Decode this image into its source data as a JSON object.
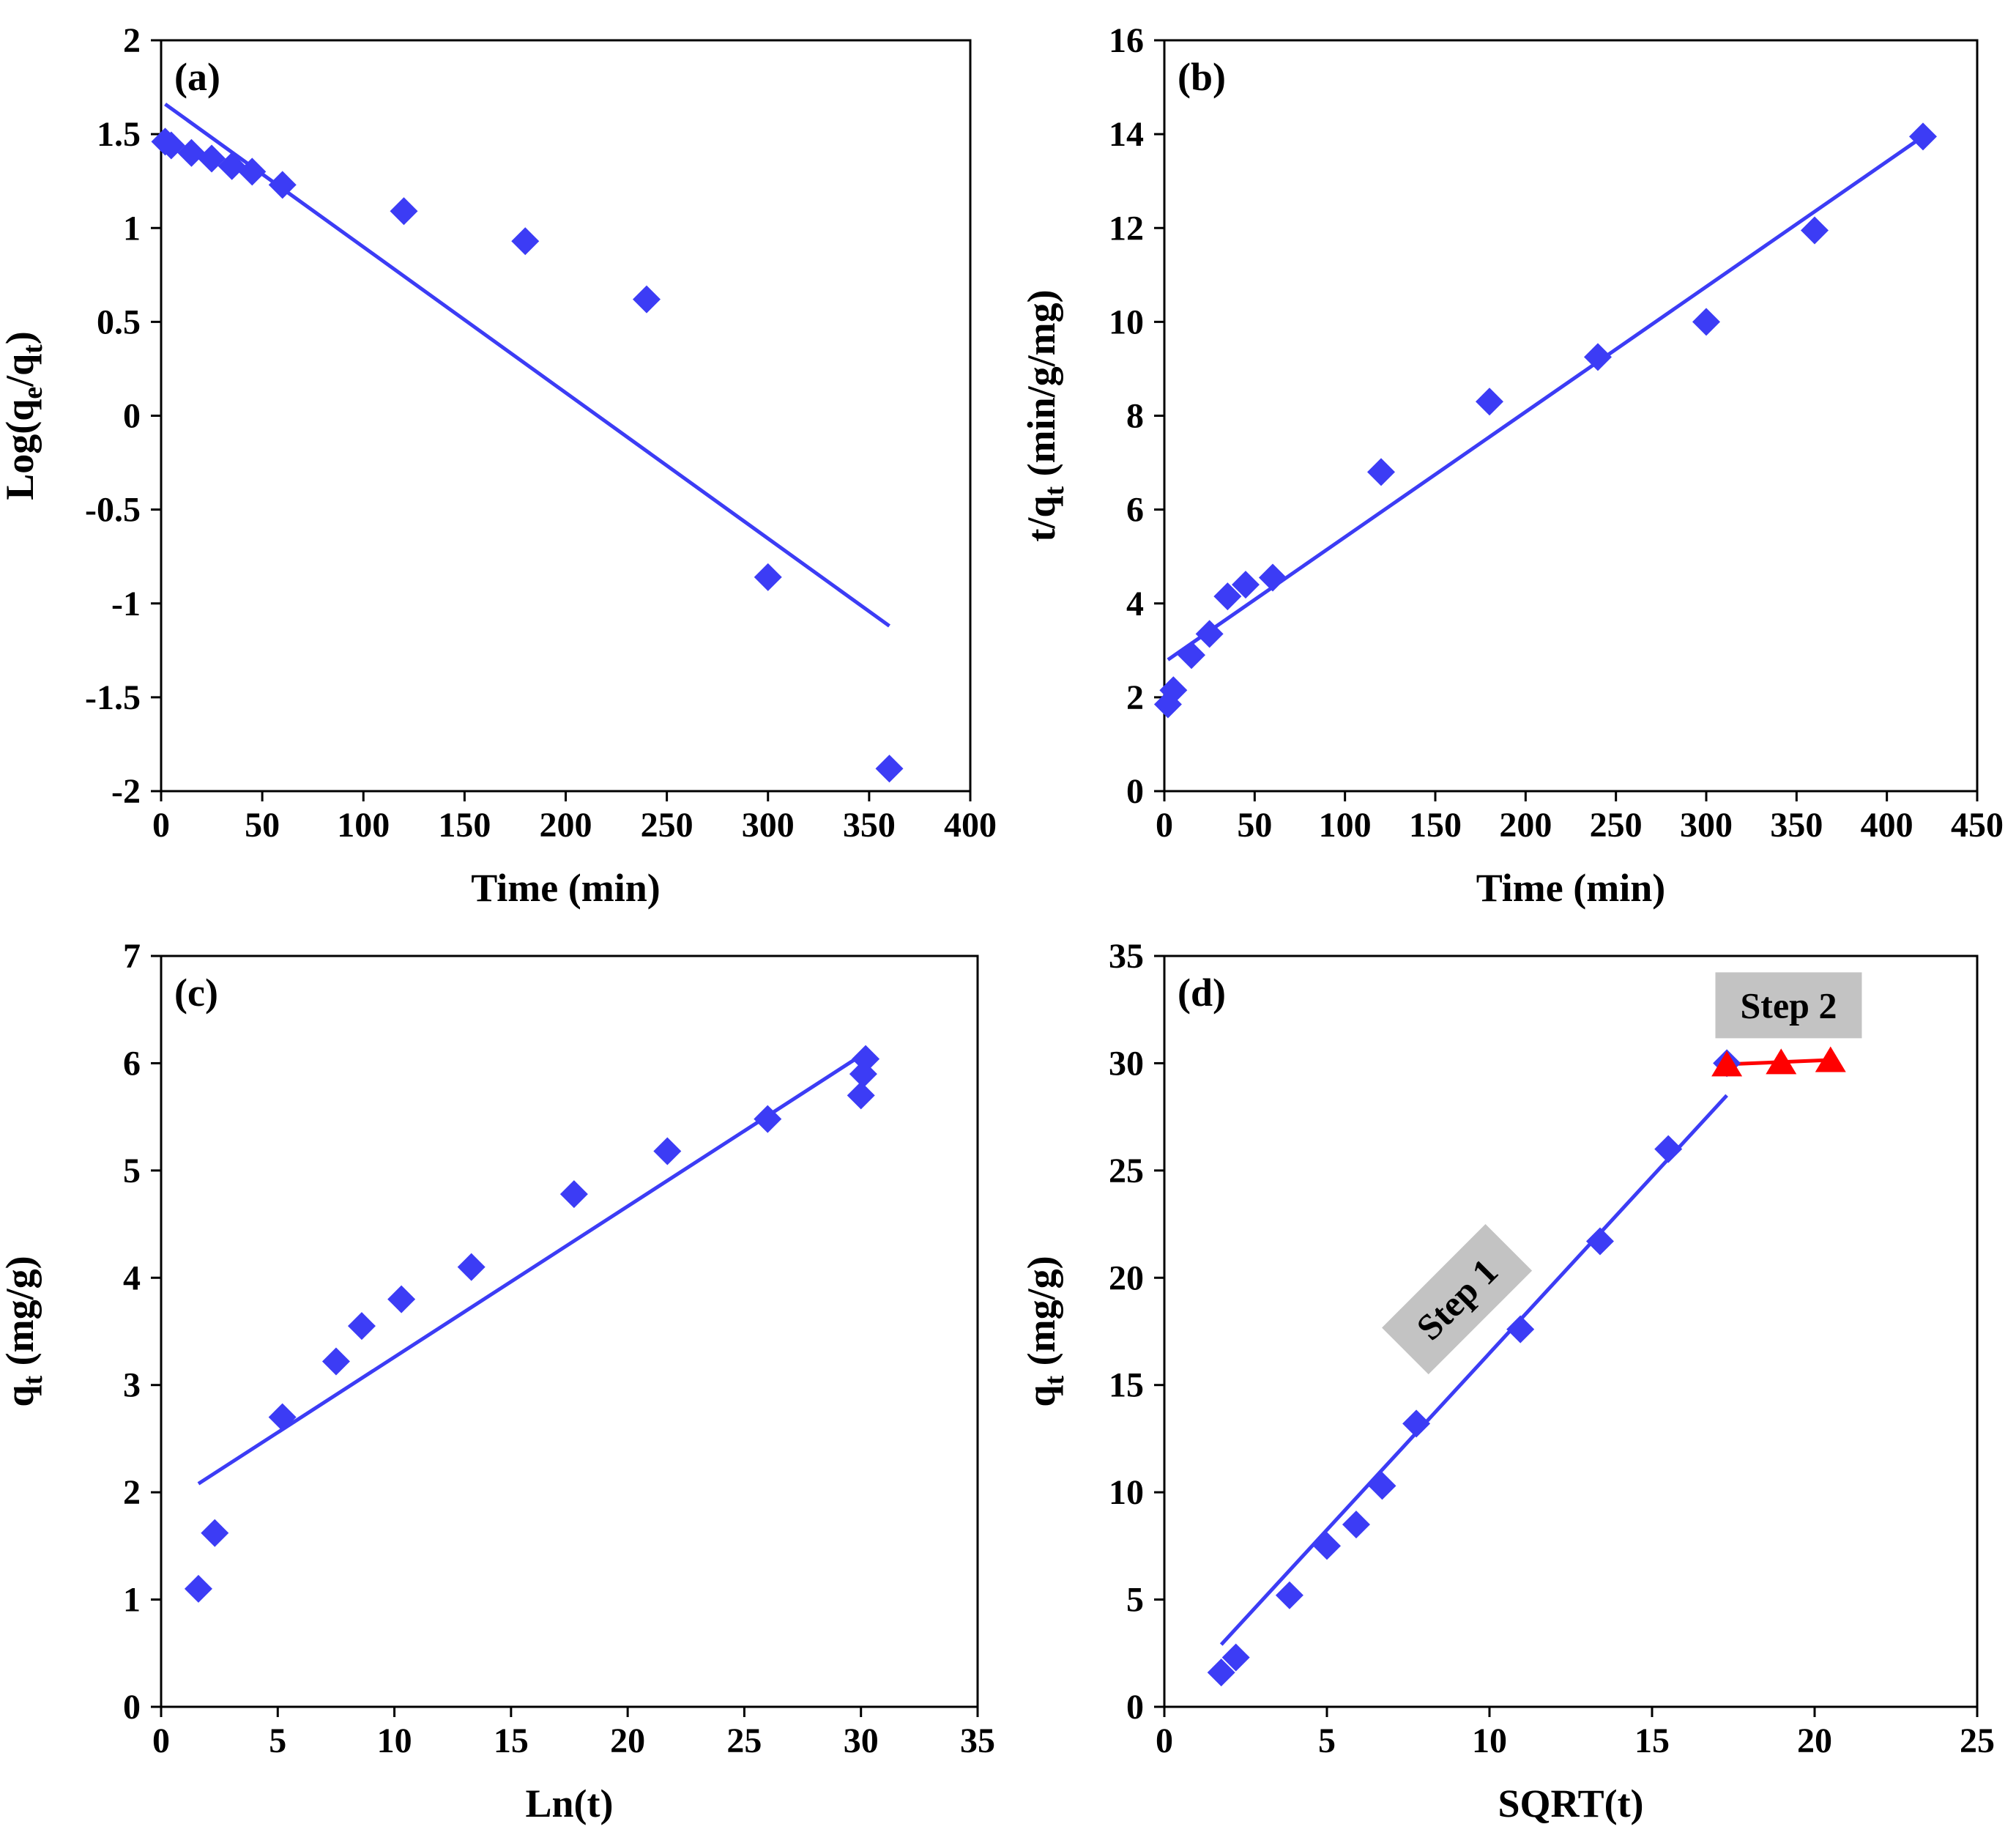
{
  "colors": {
    "blue": "#3c3cf5",
    "red": "#ff0000",
    "step_bg": "#c3c3c3",
    "axis": "#000000"
  },
  "chart_data": [
    {
      "panel": "a",
      "label": "(a)",
      "type": "scatter",
      "xlabel": "Time (min)",
      "ylabel_main": "Log(q",
      "ylabel_sub1": "e",
      "ylabel_mid": "/q",
      "ylabel_sub2": "t",
      "ylabel_end": ")",
      "xlim": [
        0,
        400
      ],
      "ylim": [
        -2,
        2
      ],
      "xticks": [
        0,
        50,
        100,
        150,
        200,
        250,
        300,
        350,
        400
      ],
      "yticks": [
        -2,
        -1.5,
        -1,
        -0.5,
        0,
        0.5,
        1,
        1.5,
        2
      ],
      "series": [
        {
          "name": "data",
          "marker": "diamond",
          "color": "blue",
          "x": [
            2,
            5,
            15,
            25,
            35,
            45,
            60,
            120,
            180,
            240,
            300,
            360
          ],
          "y": [
            1.46,
            1.44,
            1.4,
            1.37,
            1.33,
            1.3,
            1.23,
            1.09,
            0.93,
            0.62,
            -0.86,
            -1.88
          ]
        }
      ],
      "fits": [
        {
          "color": "blue",
          "x": [
            2,
            360
          ],
          "y": [
            1.66,
            -1.12
          ]
        }
      ]
    },
    {
      "panel": "b",
      "label": "(b)",
      "type": "scatter",
      "xlabel": "Time (min)",
      "ylabel_main": "t/q",
      "ylabel_sub1": "t",
      "ylabel_mid": " (min/g/mg)",
      "ylabel_sub2": "",
      "ylabel_end": "",
      "xlim": [
        0,
        450
      ],
      "ylim": [
        0,
        16
      ],
      "xticks": [
        0,
        50,
        100,
        150,
        200,
        250,
        300,
        350,
        400,
        450
      ],
      "yticks": [
        0,
        2,
        4,
        6,
        8,
        10,
        12,
        14,
        16
      ],
      "series": [
        {
          "name": "data",
          "marker": "diamond",
          "color": "blue",
          "x": [
            2,
            5,
            15,
            25,
            35,
            45,
            60,
            120,
            180,
            240,
            300,
            360,
            420
          ],
          "y": [
            1.85,
            2.15,
            2.9,
            3.35,
            4.15,
            4.4,
            4.55,
            6.8,
            8.3,
            9.25,
            10.0,
            11.95,
            13.95
          ]
        }
      ],
      "fits": [
        {
          "color": "blue",
          "x": [
            2,
            420
          ],
          "y": [
            2.8,
            13.95
          ]
        }
      ]
    },
    {
      "panel": "c",
      "label": "(c)",
      "type": "scatter",
      "xlabel": "Ln(t)",
      "ylabel_main": "q",
      "ylabel_sub1": "t",
      "ylabel_mid": " (mg/g)",
      "ylabel_sub2": "",
      "ylabel_end": "",
      "xlim": [
        0,
        35
      ],
      "ylim": [
        0,
        7
      ],
      "xticks": [
        0,
        5,
        10,
        15,
        20,
        25,
        30,
        35
      ],
      "yticks": [
        0,
        1,
        2,
        3,
        4,
        5,
        6,
        7
      ],
      "series": [
        {
          "name": "data",
          "marker": "diamond",
          "color": "blue",
          "x": [
            1.6,
            2.3,
            5.2,
            7.5,
            8.6,
            10.3,
            13.3,
            17.7,
            21.7,
            26.0,
            30.0,
            30.1,
            30.2
          ],
          "y": [
            1.1,
            1.62,
            2.7,
            3.22,
            3.55,
            3.8,
            4.1,
            4.78,
            5.18,
            5.48,
            5.7,
            5.9,
            6.04
          ]
        }
      ],
      "fits": [
        {
          "color": "blue",
          "x": [
            1.6,
            30.2
          ],
          "y": [
            2.08,
            6.1
          ]
        }
      ]
    },
    {
      "panel": "d",
      "label": "(d)",
      "type": "scatter",
      "xlabel": "SQRT(t)",
      "ylabel_main": "q",
      "ylabel_sub1": "t",
      "ylabel_mid": " (mg/g)",
      "ylabel_sub2": "",
      "ylabel_end": "",
      "xlim": [
        0,
        25
      ],
      "ylim": [
        0,
        35
      ],
      "xticks": [
        0,
        5,
        10,
        15,
        20,
        25
      ],
      "yticks": [
        0,
        5,
        10,
        15,
        20,
        25,
        30,
        35
      ],
      "series": [
        {
          "name": "Step 1",
          "marker": "diamond",
          "color": "blue",
          "x": [
            1.75,
            2.2,
            3.85,
            5.0,
            5.9,
            6.7,
            7.75,
            10.95,
            13.4,
            15.5,
            17.3
          ],
          "y": [
            1.6,
            2.3,
            5.2,
            7.5,
            8.5,
            10.3,
            13.2,
            17.6,
            21.7,
            26.0,
            30.0
          ]
        },
        {
          "name": "Step 2",
          "marker": "triangle",
          "color": "red",
          "x": [
            17.3,
            18.97,
            20.49
          ],
          "y": [
            29.9,
            30.0,
            30.1
          ]
        }
      ],
      "fits": [
        {
          "color": "blue",
          "x": [
            1.75,
            17.3
          ],
          "y": [
            2.9,
            28.5
          ]
        },
        {
          "color": "red",
          "x": [
            17.3,
            20.49
          ],
          "y": [
            29.95,
            30.15
          ]
        }
      ],
      "annotations": [
        {
          "text": "Step 1",
          "x": 9.0,
          "y": 19.0,
          "rotate": -45
        },
        {
          "text": "Step 2",
          "x": 19.2,
          "y": 32.7,
          "rotate": 0
        }
      ]
    }
  ]
}
